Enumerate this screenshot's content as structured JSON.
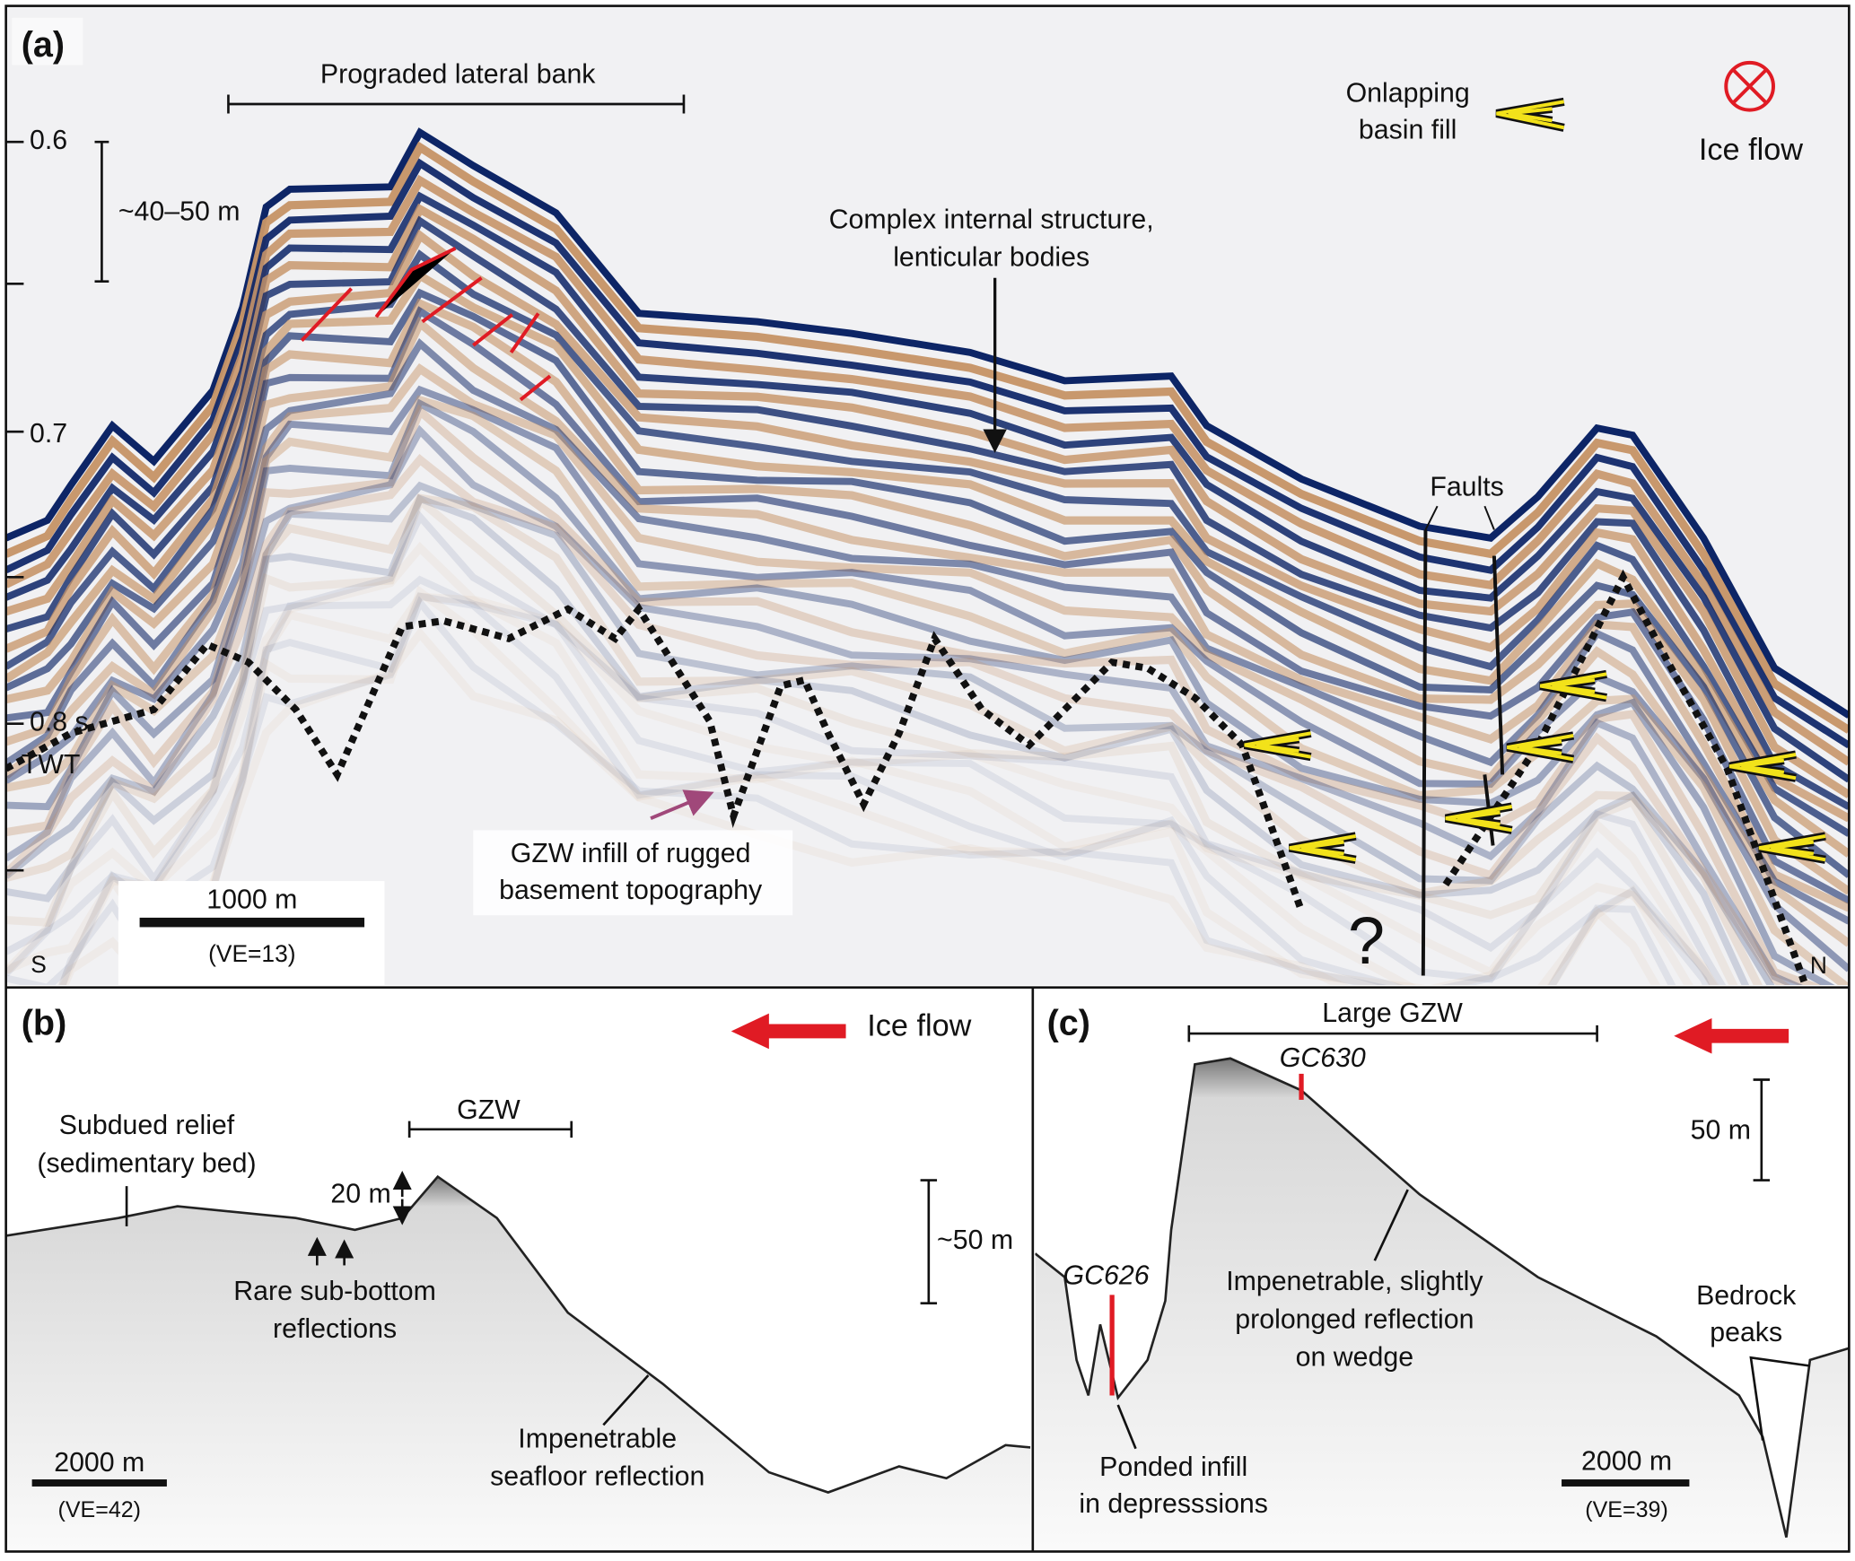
{
  "panel_a": {
    "label": "(a)",
    "bank": "Prograded lateral bank",
    "tick_06": "0.6",
    "tick_07": "0.7",
    "tick_08": "0.8 s",
    "twt": "TWT",
    "vertical_scale": "~40–50 m",
    "onlap": [
      "Onlapping",
      "basin fill"
    ],
    "ice_flow": "Ice flow",
    "complex": [
      "Complex internal structure,",
      "lenticular bodies"
    ],
    "faults": "Faults",
    "gzw_infill": [
      "GZW infill of rugged",
      "basement topography"
    ],
    "scale": "1000 m",
    "ve": "(VE=13)",
    "south": "S",
    "question": "?",
    "north": "N"
  },
  "panel_b": {
    "label": "(b)",
    "ice_flow": "Ice flow",
    "subdued": [
      "Subdued relief",
      "(sedimentary bed)"
    ],
    "gzw": "GZW",
    "relief": "20 m",
    "vertical_scale": "~50 m",
    "rare": [
      "Rare sub-bottom",
      "reflections"
    ],
    "impenetrable": [
      "Impenetrable",
      "seafloor reflection"
    ],
    "scale": "2000 m",
    "ve": "(VE=42)"
  },
  "panel_c": {
    "label": "(c)",
    "large_gzw": "Large GZW",
    "gc630": "GC630",
    "vertical_scale": "50 m",
    "gc626": "GC626",
    "impenetrable": [
      "Impenetrable, slightly",
      "prolonged reflection",
      "on wedge"
    ],
    "bedrock": [
      "Bedrock",
      "peaks"
    ],
    "ponded": [
      "Ponded infill",
      "in depresssions"
    ],
    "scale": "2000 m",
    "ve": "(VE=39)"
  }
}
